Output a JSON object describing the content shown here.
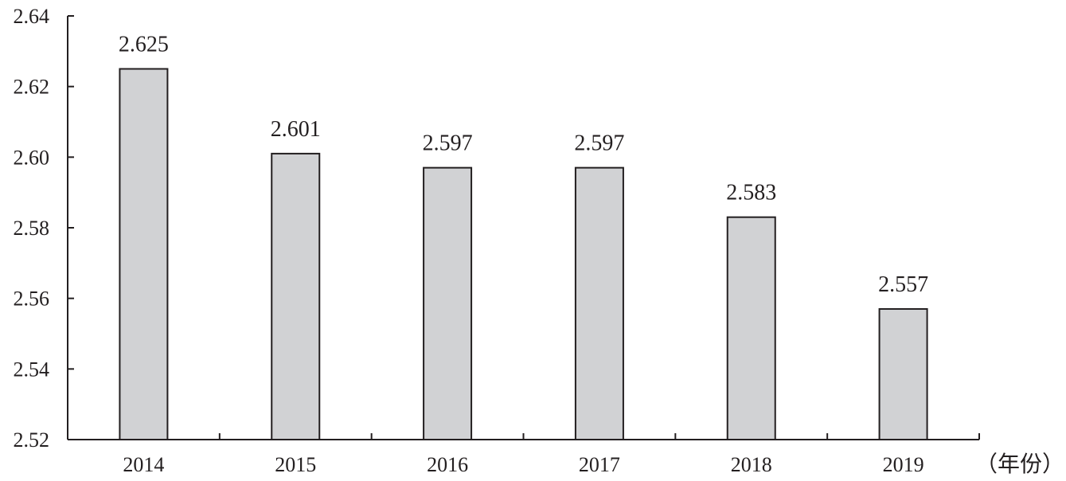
{
  "chart_data": {
    "type": "bar",
    "categories": [
      "2014",
      "2015",
      "2016",
      "2017",
      "2018",
      "2019"
    ],
    "values": [
      2.625,
      2.601,
      2.597,
      2.597,
      2.583,
      2.557
    ],
    "data_labels": [
      "2.625",
      "2.601",
      "2.597",
      "2.597",
      "2.583",
      "2.557"
    ],
    "ylim": [
      2.52,
      2.64
    ],
    "yticks": [
      "2.52",
      "2.54",
      "2.56",
      "2.58",
      "2.60",
      "2.62",
      "2.64"
    ],
    "xlabel": "（年份）",
    "ylabel": "",
    "title": "",
    "grid": false,
    "colors": {
      "bar_fill": "#d1d2d4",
      "bar_stroke": "#231f20",
      "axis": "#231f20",
      "text": "#231f20"
    }
  }
}
